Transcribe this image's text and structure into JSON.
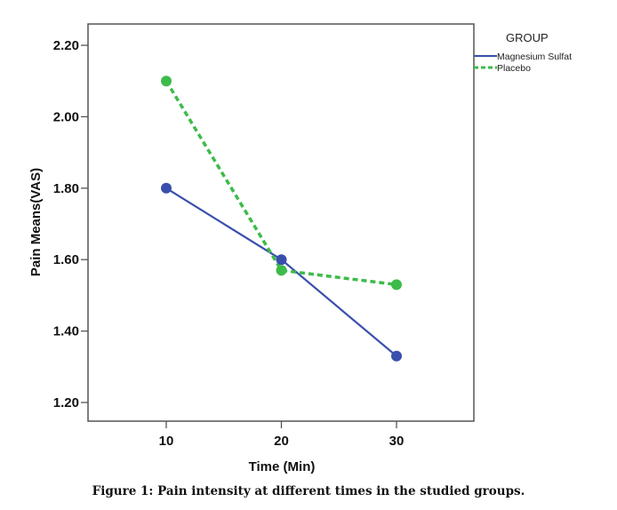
{
  "caption": "Figure 1: Pain intensity at different times in the studied groups.",
  "chart_data": {
    "type": "line",
    "title": "",
    "xlabel": "Time (Min)",
    "ylabel": "Pain Means(VAS)",
    "x": [
      10,
      20,
      30
    ],
    "x_ticks": [
      "10",
      "20",
      "30"
    ],
    "xlim": [
      3.2,
      36.7
    ],
    "y_ticks": [
      "1.20",
      "1.40",
      "1.60",
      "1.80",
      "2.00",
      "2.20"
    ],
    "ylim": [
      1.15,
      2.26
    ],
    "grid": false,
    "legend": {
      "title": "GROUP",
      "placement": "top-right-outside"
    },
    "series": [
      {
        "name": "Magnesium Sulfat",
        "values": [
          1.8,
          1.6,
          1.33
        ],
        "color": "#3a4fad",
        "style": "solid"
      },
      {
        "name": "Placebo",
        "values": [
          2.1,
          1.57,
          1.53
        ],
        "color": "#3dbb4a",
        "style": "dashed"
      }
    ]
  }
}
